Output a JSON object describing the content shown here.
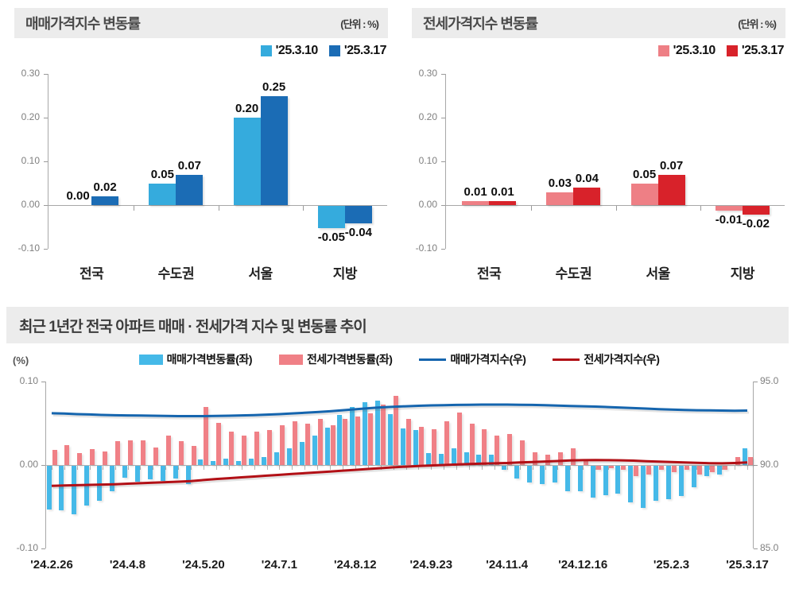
{
  "section_title": "최근 1년간 전국 아파트 매매 · 전세가격 지수 및 변동률 추이",
  "chart_data": [
    {
      "id": "sale-change-bar",
      "type": "bar",
      "title": "매매가격지수 변동률",
      "unit": "(단위 : %)",
      "categories": [
        "전국",
        "수도권",
        "서울",
        "지방"
      ],
      "ylim": [
        -0.1,
        0.3
      ],
      "yticks": [
        "0.30",
        "0.20",
        "0.10",
        "0.00",
        "-0.10"
      ],
      "grid": false,
      "legend_position": "top-right",
      "series": [
        {
          "name": "'25.3.10",
          "color": "#35abdd",
          "hatch": "light",
          "values": [
            0.0,
            0.05,
            0.2,
            -0.05
          ],
          "labels": [
            "0.00",
            "0.05",
            "0.20",
            "-0.05"
          ]
        },
        {
          "name": "'25.3.17",
          "color": "#1b6cb5",
          "hatch": "dark",
          "values": [
            0.02,
            0.07,
            0.25,
            -0.04
          ],
          "labels": [
            "0.02",
            "0.07",
            "0.25",
            "-0.04"
          ]
        }
      ]
    },
    {
      "id": "jeonse-change-bar",
      "type": "bar",
      "title": "전세가격지수 변동률",
      "unit": "(단위 : %)",
      "categories": [
        "전국",
        "수도권",
        "서울",
        "지방"
      ],
      "ylim": [
        -0.1,
        0.3
      ],
      "yticks": [
        "0.30",
        "0.20",
        "0.10",
        "0.00",
        "-0.10"
      ],
      "grid": false,
      "legend_position": "top-right",
      "series": [
        {
          "name": "'25.3.10",
          "color": "#ee7f85",
          "hatch": "light",
          "values": [
            0.01,
            0.03,
            0.05,
            -0.01
          ],
          "labels": [
            "0.01",
            "0.03",
            "0.05",
            "-0.01"
          ]
        },
        {
          "name": "'25.3.17",
          "color": "#d8222a",
          "hatch": "none",
          "values": [
            0.01,
            0.04,
            0.07,
            -0.02
          ],
          "labels": [
            "0.01",
            "0.04",
            "0.07",
            "-0.02"
          ]
        }
      ]
    },
    {
      "id": "trend-combo",
      "type": "bar+line",
      "title": "최근 1년간 전국 아파트 매매 · 전세가격 지수 및 변동률 추이",
      "left_unit": "(%)",
      "left_ylim": [
        -0.1,
        0.1
      ],
      "left_yticks": [
        "0.10",
        "0.00",
        "-0.10"
      ],
      "right_ylim": [
        85.0,
        95.0
      ],
      "right_yticks": [
        "95.0",
        "90.0",
        "85.0"
      ],
      "grid": false,
      "legend_position": "top-center",
      "x_labels": [
        "'24.2.26",
        "'24.4.8",
        "'24.5.20",
        "'24.7.1",
        "'24.8.12",
        "'24.9.23",
        "'24.11.4",
        "'24.12.16",
        "'25.2.3",
        "'25.3.17"
      ],
      "x_label_indices": [
        0,
        6,
        12,
        18,
        24,
        30,
        36,
        42,
        49,
        55
      ],
      "bar_series": [
        {
          "name": "매매가격변동률(좌)",
          "color": "#45b9e8",
          "axis": "left",
          "values": [
            -0.052,
            -0.053,
            -0.058,
            -0.048,
            -0.042,
            -0.03,
            -0.014,
            -0.019,
            -0.016,
            -0.018,
            -0.015,
            -0.022,
            0.007,
            0.005,
            0.008,
            0.005,
            0.008,
            0.01,
            0.015,
            0.02,
            0.028,
            0.035,
            0.045,
            0.06,
            0.07,
            0.075,
            0.077,
            0.061,
            0.044,
            0.042,
            0.014,
            0.013,
            0.02,
            0.015,
            0.012,
            0.012,
            -0.005,
            -0.015,
            -0.02,
            -0.022,
            -0.02,
            -0.03,
            -0.03,
            -0.038,
            -0.035,
            -0.033,
            -0.044,
            -0.05,
            -0.042,
            -0.04,
            -0.036,
            -0.026,
            -0.012,
            -0.01,
            0.0,
            0.02
          ]
        },
        {
          "name": "전세가격변동률(좌)",
          "color": "#f08086",
          "axis": "left",
          "values": [
            0.018,
            0.024,
            0.014,
            0.019,
            0.016,
            0.029,
            0.03,
            0.03,
            0.021,
            0.035,
            0.029,
            0.023,
            0.07,
            0.051,
            0.04,
            0.035,
            0.04,
            0.042,
            0.048,
            0.052,
            0.05,
            0.055,
            0.048,
            0.055,
            0.058,
            0.062,
            0.072,
            0.083,
            0.055,
            0.046,
            0.043,
            0.052,
            0.063,
            0.05,
            0.043,
            0.035,
            0.037,
            0.03,
            0.015,
            0.012,
            0.015,
            0.02,
            0.005,
            -0.005,
            -0.003,
            -0.005,
            -0.012,
            -0.01,
            -0.005,
            -0.008,
            -0.005,
            -0.01,
            -0.008,
            -0.005,
            0.01,
            0.01
          ]
        }
      ],
      "line_series": [
        {
          "name": "매매가격지수(우)",
          "color": "#1565ae",
          "axis": "right",
          "values": [
            93.1,
            93.08,
            93.05,
            93.03,
            93.0,
            92.98,
            92.97,
            92.96,
            92.95,
            92.94,
            92.93,
            92.93,
            92.93,
            92.94,
            92.95,
            92.97,
            92.99,
            93.02,
            93.05,
            93.09,
            93.13,
            93.17,
            93.22,
            93.28,
            93.34,
            93.4,
            93.45,
            93.49,
            93.52,
            93.55,
            93.57,
            93.58,
            93.6,
            93.61,
            93.62,
            93.62,
            93.62,
            93.61,
            93.6,
            93.58,
            93.56,
            93.54,
            93.52,
            93.5,
            93.47,
            93.44,
            93.41,
            93.38,
            93.35,
            93.32,
            93.3,
            93.28,
            93.27,
            93.26,
            93.25,
            93.26
          ]
        },
        {
          "name": "전세가격지수(우)",
          "color": "#b21016",
          "axis": "right",
          "values": [
            88.75,
            88.77,
            88.79,
            88.81,
            88.83,
            88.85,
            88.88,
            88.91,
            88.94,
            88.97,
            89.0,
            89.04,
            89.1,
            89.16,
            89.21,
            89.26,
            89.31,
            89.36,
            89.41,
            89.46,
            89.51,
            89.56,
            89.61,
            89.66,
            89.71,
            89.76,
            89.81,
            89.86,
            89.9,
            89.94,
            89.97,
            90.0,
            90.03,
            90.06,
            90.08,
            90.1,
            90.12,
            90.15,
            90.18,
            90.21,
            90.24,
            90.27,
            90.29,
            90.3,
            90.29,
            90.28,
            90.26,
            90.23,
            90.2,
            90.18,
            90.15,
            90.13,
            90.11,
            90.1,
            90.12,
            90.15
          ]
        }
      ]
    }
  ]
}
